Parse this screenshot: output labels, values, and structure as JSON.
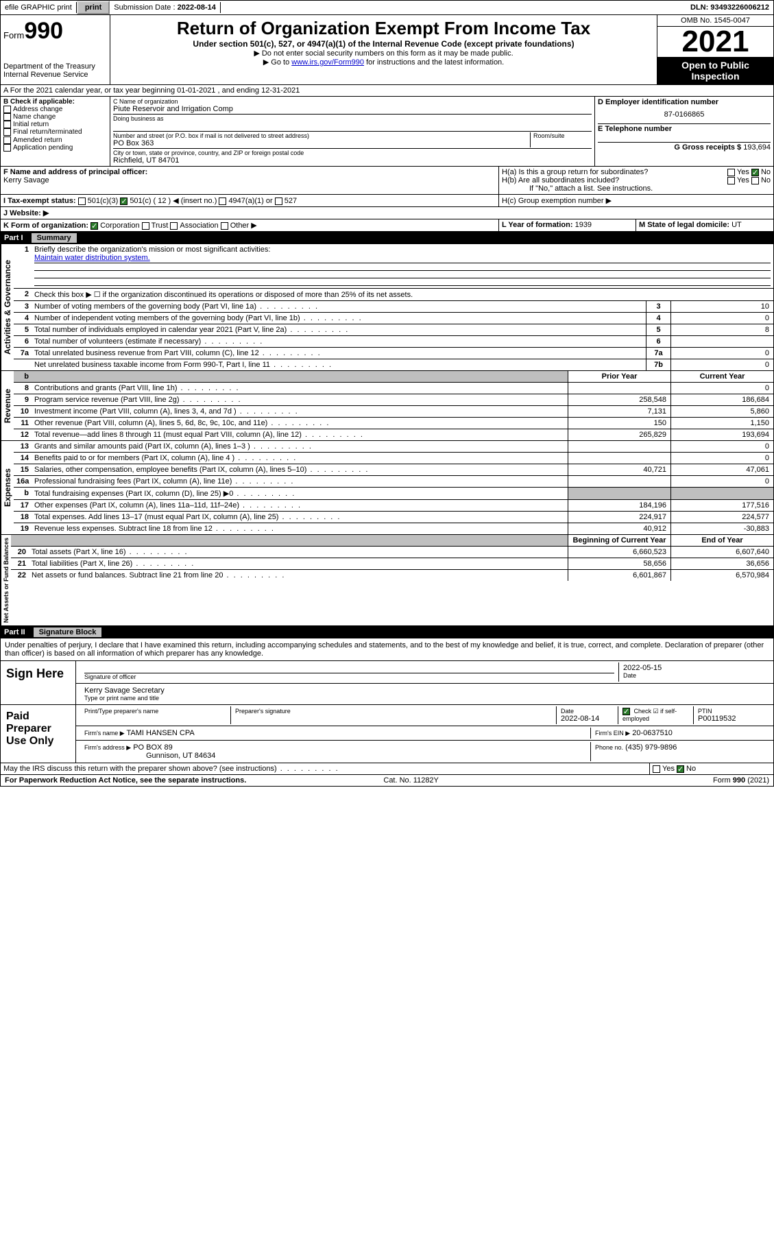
{
  "topbar": {
    "efile": "efile GRAPHIC print",
    "submission_label": "Submission Date :",
    "submission_date": "2022-08-14",
    "dln_label": "DLN:",
    "dln": "93493226006212"
  },
  "header": {
    "form_word": "Form",
    "form_no": "990",
    "dept": "Department of the Treasury",
    "irs": "Internal Revenue Service",
    "title": "Return of Organization Exempt From Income Tax",
    "sub": "Under section 501(c), 527, or 4947(a)(1) of the Internal Revenue Code (except private foundations)",
    "arrow1": "▶ Do not enter social security numbers on this form as it may be made public.",
    "arrow2_pre": "▶ Go to ",
    "arrow2_link": "www.irs.gov/Form990",
    "arrow2_post": " for instructions and the latest information.",
    "omb": "OMB No. 1545-0047",
    "year": "2021",
    "open": "Open to Public Inspection"
  },
  "sectionA": "A For the 2021 calendar year, or tax year beginning 01-01-2021   , and ending 12-31-2021",
  "B": {
    "label": "B Check if applicable:",
    "items": [
      "Address change",
      "Name change",
      "Initial return",
      "Final return/terminated",
      "Amended return",
      "Application pending"
    ]
  },
  "C": {
    "name_label": "C Name of organization",
    "name": "Piute Reservoir and Irrigation Comp",
    "dba_label": "Doing business as",
    "street_label": "Number and street (or P.O. box if mail is not delivered to street address)",
    "room_label": "Room/suite",
    "street": "PO Box 363",
    "city_label": "City or town, state or province, country, and ZIP or foreign postal code",
    "city": "Richfield, UT  84701"
  },
  "D": {
    "label": "D Employer identification number",
    "value": "87-0166865"
  },
  "E": {
    "label": "E Telephone number",
    "value": ""
  },
  "G": {
    "label": "G Gross receipts $",
    "value": "193,694"
  },
  "F": {
    "label": "F Name and address of principal officer:",
    "name": "Kerry Savage"
  },
  "H": {
    "a": "H(a)  Is this a group return for subordinates?",
    "b": "H(b)  Are all subordinates included?",
    "note": "If \"No,\" attach a list. See instructions.",
    "c": "H(c)  Group exemption number ▶",
    "yes": "Yes",
    "no": "No"
  },
  "I": {
    "label": "I   Tax-exempt status:",
    "o1": "501(c)(3)",
    "o2": "501(c) ( 12 ) ◀ (insert no.)",
    "o3": "4947(a)(1) or",
    "o4": "527"
  },
  "J": {
    "label": "J   Website: ▶"
  },
  "K": {
    "label": "K Form of organization:",
    "o1": "Corporation",
    "o2": "Trust",
    "o3": "Association",
    "o4": "Other ▶"
  },
  "L": {
    "label": "L Year of formation:",
    "value": "1939"
  },
  "M": {
    "label": "M State of legal domicile:",
    "value": "UT"
  },
  "part1": {
    "num": "Part I",
    "title": "Summary"
  },
  "summary": {
    "q1": "Briefly describe the organization's mission or most significant activities:",
    "mission": "Maintain water distribution system.",
    "q2": "Check this box ▶ ☐  if the organization discontinued its operations or disposed of more than 25% of its net assets.",
    "lines_num": [
      {
        "n": "3",
        "t": "Number of voting members of the governing body (Part VI, line 1a)",
        "box": "3",
        "v": "10"
      },
      {
        "n": "4",
        "t": "Number of independent voting members of the governing body (Part VI, line 1b)",
        "box": "4",
        "v": "0"
      },
      {
        "n": "5",
        "t": "Total number of individuals employed in calendar year 2021 (Part V, line 2a)",
        "box": "5",
        "v": "8"
      },
      {
        "n": "6",
        "t": "Total number of volunteers (estimate if necessary)",
        "box": "6",
        "v": ""
      },
      {
        "n": "7a",
        "t": "Total unrelated business revenue from Part VIII, column (C), line 12",
        "box": "7a",
        "v": "0"
      },
      {
        "n": "",
        "t": "Net unrelated business taxable income from Form 990-T, Part I, line 11",
        "box": "7b",
        "v": "0"
      }
    ],
    "col_prior": "Prior Year",
    "col_current": "Current Year",
    "col_begin": "Beginning of Current Year",
    "col_end": "End of Year",
    "groups": {
      "activities": "Activities & Governance",
      "revenue": "Revenue",
      "expenses": "Expenses",
      "net": "Net Assets or Fund Balances"
    },
    "rev": [
      {
        "n": "8",
        "t": "Contributions and grants (Part VIII, line 1h)",
        "p": "",
        "c": "0"
      },
      {
        "n": "9",
        "t": "Program service revenue (Part VIII, line 2g)",
        "p": "258,548",
        "c": "186,684"
      },
      {
        "n": "10",
        "t": "Investment income (Part VIII, column (A), lines 3, 4, and 7d )",
        "p": "7,131",
        "c": "5,860"
      },
      {
        "n": "11",
        "t": "Other revenue (Part VIII, column (A), lines 5, 6d, 8c, 9c, 10c, and 11e)",
        "p": "150",
        "c": "1,150"
      },
      {
        "n": "12",
        "t": "Total revenue—add lines 8 through 11 (must equal Part VIII, column (A), line 12)",
        "p": "265,829",
        "c": "193,694"
      }
    ],
    "exp": [
      {
        "n": "13",
        "t": "Grants and similar amounts paid (Part IX, column (A), lines 1–3 )",
        "p": "",
        "c": "0"
      },
      {
        "n": "14",
        "t": "Benefits paid to or for members (Part IX, column (A), line 4 )",
        "p": "",
        "c": "0"
      },
      {
        "n": "15",
        "t": "Salaries, other compensation, employee benefits (Part IX, column (A), lines 5–10)",
        "p": "40,721",
        "c": "47,061"
      },
      {
        "n": "16a",
        "t": "Professional fundraising fees (Part IX, column (A), line 11e)",
        "p": "",
        "c": "0"
      },
      {
        "n": "b",
        "t": "Total fundraising expenses (Part IX, column (D), line 25) ▶0",
        "p": "bg",
        "c": "bg"
      },
      {
        "n": "17",
        "t": "Other expenses (Part IX, column (A), lines 11a–11d, 11f–24e)",
        "p": "184,196",
        "c": "177,516"
      },
      {
        "n": "18",
        "t": "Total expenses. Add lines 13–17 (must equal Part IX, column (A), line 25)",
        "p": "224,917",
        "c": "224,577"
      },
      {
        "n": "19",
        "t": "Revenue less expenses. Subtract line 18 from line 12",
        "p": "40,912",
        "c": "-30,883"
      }
    ],
    "net": [
      {
        "n": "20",
        "t": "Total assets (Part X, line 16)",
        "p": "6,660,523",
        "c": "6,607,640"
      },
      {
        "n": "21",
        "t": "Total liabilities (Part X, line 26)",
        "p": "58,656",
        "c": "36,656"
      },
      {
        "n": "22",
        "t": "Net assets or fund balances. Subtract line 21 from line 20",
        "p": "6,601,867",
        "c": "6,570,984"
      }
    ]
  },
  "part2": {
    "num": "Part II",
    "title": "Signature Block"
  },
  "sig": {
    "penalty": "Under penalties of perjury, I declare that I have examined this return, including accompanying schedules and statements, and to the best of my knowledge and belief, it is true, correct, and complete. Declaration of preparer (other than officer) is based on all information of which preparer has any knowledge.",
    "sign_here": "Sign Here",
    "sig_officer": "Signature of officer",
    "date_label": "Date",
    "date": "2022-05-15",
    "name_title_label": "Type or print name and title",
    "name_title": "Kerry Savage Secretary",
    "paid": "Paid Preparer Use Only",
    "prep_name_label": "Print/Type preparer's name",
    "prep_sig_label": "Preparer's signature",
    "prep_date_label": "Date",
    "prep_date": "2022-08-14",
    "self_emp": "Check ☑ if self-employed",
    "ptin_label": "PTIN",
    "ptin": "P00119532",
    "firm_name_label": "Firm's name    ▶",
    "firm_name": "TAMI HANSEN CPA",
    "firm_ein_label": "Firm's EIN ▶",
    "firm_ein": "20-0637510",
    "firm_addr_label": "Firm's address ▶",
    "firm_addr1": "PO BOX 89",
    "firm_addr2": "Gunnison, UT  84634",
    "phone_label": "Phone no.",
    "phone": "(435) 979-9896",
    "discuss": "May the IRS discuss this return with the preparer shown above? (see instructions)",
    "yes": "Yes",
    "no": "No"
  },
  "footer": {
    "left": "For Paperwork Reduction Act Notice, see the separate instructions.",
    "mid": "Cat. No. 11282Y",
    "right": "Form 990 (2021)"
  }
}
